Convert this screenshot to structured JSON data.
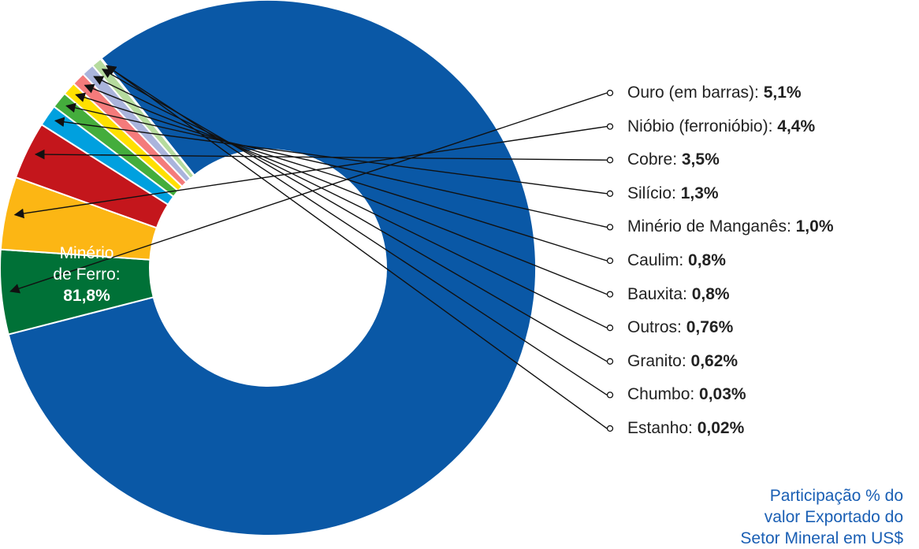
{
  "chart_data": {
    "type": "pie",
    "variant": "donut",
    "slices": [
      {
        "label": "Minério de Ferro",
        "value_text": "81,8%",
        "value": 81.8,
        "color": "#0a58a6"
      },
      {
        "label": "Ouro (em barras)",
        "value_text": "5,1%",
        "value": 5.1,
        "color": "#007137"
      },
      {
        "label": "Nióbio (ferronióbio)",
        "value_text": "4,4%",
        "value": 4.4,
        "color": "#fcb614"
      },
      {
        "label": "Cobre",
        "value_text": "3,5%",
        "value": 3.5,
        "color": "#c4161c"
      },
      {
        "label": "Silício",
        "value_text": "1,3%",
        "value": 1.3,
        "color": "#00a0df"
      },
      {
        "label": "Minério de Manganês",
        "value_text": "1,0%",
        "value": 1.0,
        "color": "#44ad3c"
      },
      {
        "label": "Caulim",
        "value_text": "0,8%",
        "value": 0.8,
        "color": "#ffe000"
      },
      {
        "label": "Bauxita",
        "value_text": "0,8%",
        "value": 0.8,
        "color": "#f47b7b"
      },
      {
        "label": "Outros",
        "value_text": "0,76%",
        "value": 0.76,
        "color": "#aab4dc"
      },
      {
        "label": "Granito",
        "value_text": "0,62%",
        "value": 0.62,
        "color": "#b6db9e"
      },
      {
        "label": "Chumbo",
        "value_text": "0,03%",
        "value": 0.03,
        "color": "#f3cf8c"
      },
      {
        "label": "Estanho",
        "value_text": "0,02%",
        "value": 0.02,
        "color": "#d9d9d9"
      }
    ],
    "main_label": {
      "line1": "Minério",
      "line2": "de Ferro:",
      "value": "81,8%"
    },
    "note_lines": [
      "Participação % do",
      "valor Exportado do",
      "Setor Mineral em US$"
    ]
  }
}
